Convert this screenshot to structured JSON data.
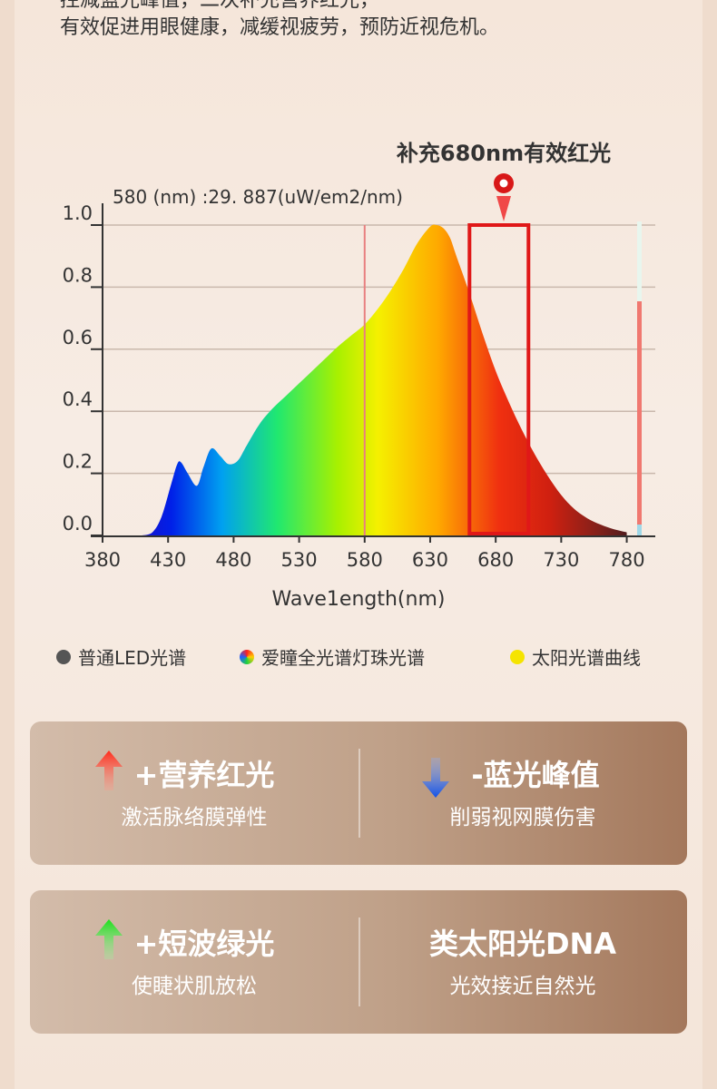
{
  "intro_lines": [
    "控减蓝光峰值，二次补充营养红光，",
    "有效促进用眼健康，减缓视疲劳，预防近视危机。"
  ],
  "callout_label": "补充680nm有效红光",
  "chart_data": {
    "type": "area",
    "title": "",
    "readout": "580 (nm) :29. 887(uW/em2/nm)",
    "xlabel": "Wave1ength(nm)",
    "ylabel": "",
    "xlim": [
      380,
      790
    ],
    "ylim": [
      0,
      1.0
    ],
    "xticks": [
      "380",
      "430",
      "480",
      "530",
      "580",
      "630",
      "680",
      "730",
      "780"
    ],
    "yticks": [
      "0.0",
      "0.2",
      "0.4",
      "0.6",
      "0.8",
      "1.0"
    ],
    "grid": true,
    "legend_position": "bottom",
    "series": [
      {
        "x": [
          410,
          418,
          425,
          432,
          437,
          440,
          445,
          452,
          457,
          463,
          470,
          476,
          483,
          490,
          500,
          510,
          520,
          530,
          540,
          550,
          560,
          570,
          580,
          590,
          600,
          610,
          620,
          630,
          635,
          640,
          645,
          650,
          660,
          670,
          680,
          690,
          700,
          710,
          720,
          730,
          740,
          750,
          760,
          770,
          780
        ],
        "values": [
          0.0,
          0.01,
          0.06,
          0.16,
          0.23,
          0.235,
          0.2,
          0.16,
          0.22,
          0.28,
          0.255,
          0.23,
          0.24,
          0.29,
          0.36,
          0.41,
          0.45,
          0.49,
          0.53,
          0.57,
          0.61,
          0.645,
          0.68,
          0.73,
          0.79,
          0.86,
          0.94,
          0.995,
          1.0,
          0.99,
          0.96,
          0.9,
          0.78,
          0.65,
          0.53,
          0.43,
          0.34,
          0.26,
          0.19,
          0.13,
          0.085,
          0.055,
          0.035,
          0.02,
          0.01
        ]
      }
    ],
    "reference_lines": [
      580
    ],
    "highlight_band": [
      660,
      705
    ],
    "legend": [
      {
        "label": "普通LED光谱",
        "color": "#555555"
      },
      {
        "label": "爱瞳全光谱灯珠光谱",
        "color": "rainbow"
      },
      {
        "label": "太阳光谱曲线",
        "color": "#f5e400"
      }
    ]
  },
  "cards": [
    {
      "left": {
        "title": "+营养红光",
        "sub": "激活脉络膜弹性",
        "arrow": "up",
        "arrow_color": "#e8322a"
      },
      "right": {
        "title": "-蓝光峰值",
        "sub": "削弱视网膜伤害",
        "arrow": "down",
        "arrow_color": "#1a5fe0"
      }
    },
    {
      "left": {
        "title": "+短波绿光",
        "sub": "使睫状肌放松",
        "arrow": "up",
        "arrow_color": "#2fd12f"
      },
      "right": {
        "title": "类太阳光DNA",
        "sub": "光效接近自然光",
        "arrow": "",
        "arrow_color": ""
      }
    }
  ]
}
